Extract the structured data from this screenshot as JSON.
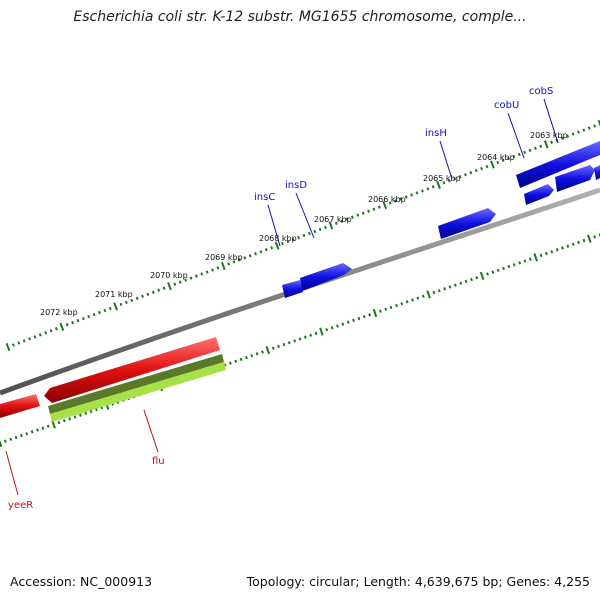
{
  "title": "Escherichia coli str. K-12 substr. MG1655 chromosome, comple...",
  "footer": {
    "accession": "Accession: NC_000913",
    "topology": "Topology: circular; Length: 4,639,675 bp; Genes: 4,255"
  },
  "ticks": [
    "2063 kbp",
    "2064 kbp",
    "2065 kbp",
    "2066 kbp",
    "2067 kbp",
    "2068 kbp",
    "2069 kbp",
    "2070 kbp",
    "2071 kbp",
    "2072 kbp"
  ],
  "genes": [
    {
      "name": "cobS",
      "strand": "+",
      "color": "#1010e0"
    },
    {
      "name": "cobU",
      "strand": "+",
      "color": "#1010e0"
    },
    {
      "name": "insH",
      "strand": "+",
      "color": "#1010e0"
    },
    {
      "name": "insD",
      "strand": "+",
      "color": "#1010e0"
    },
    {
      "name": "insC",
      "strand": "+",
      "color": "#1010e0"
    },
    {
      "name": "flu",
      "strand": "-",
      "color": "#e01010"
    },
    {
      "name": "yeeR",
      "strand": "-",
      "color": "#e01010"
    }
  ],
  "colors": {
    "backbone": "#808080",
    "tick": "#1a7a1a",
    "forward_gene": "#1010e0",
    "reverse_gene": "#e01010",
    "forward_label": "#1010c0",
    "reverse_label": "#c01010"
  }
}
